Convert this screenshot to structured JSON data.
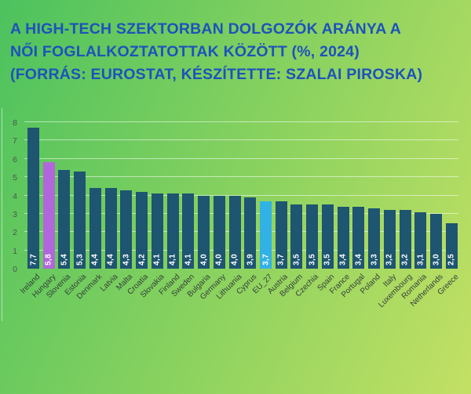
{
  "header": {
    "line1": "A HIGH-TECH SZEKTORBAN DOLGOZÓK ARÁNYA A",
    "line2": "NŐI FOGLALKOZTATOTTAK KÖZÖTT (%, 2024)",
    "line3": "(FORRÁS: EUROSTAT, KÉSZÍTETTE: SZALAI PIROSKA)"
  },
  "chart_data": {
    "type": "bar",
    "title": "A high-tech szektorban dolgozók aránya a női foglalkoztatottak között (%, 2024)",
    "source_note": "(Forrás: Eurostat, készítette: Szalai Piroska)",
    "categories": [
      "Ireland",
      "Hungary",
      "Slovenia",
      "Estonia",
      "Denmark",
      "Latvia",
      "Malta",
      "Croatia",
      "Slovakia",
      "Finland",
      "Sweden",
      "Bulgaria",
      "Germany",
      "Lithuania",
      "Cyprus",
      "EU_27",
      "Austria",
      "Belgium",
      "Czechia",
      "Spain",
      "France",
      "Portugal",
      "Poland",
      "Italy",
      "Luxembourg",
      "Romania",
      "Netherlands",
      "Greece"
    ],
    "values": [
      7.7,
      5.8,
      5.4,
      5.3,
      4.4,
      4.4,
      4.3,
      4.2,
      4.1,
      4.1,
      4.1,
      4.0,
      4.0,
      4.0,
      3.9,
      3.7,
      3.7,
      3.5,
      3.5,
      3.5,
      3.4,
      3.4,
      3.3,
      3.2,
      3.2,
      3.1,
      3.0,
      2.5
    ],
    "value_labels": [
      "7,7",
      "5,8",
      "5,4",
      "5,3",
      "4,4",
      "4,4",
      "4,3",
      "4,2",
      "4,1",
      "4,1",
      "4,1",
      "4,0",
      "4,0",
      "4,0",
      "3,9",
      "3,7",
      "3,7",
      "3,5",
      "3,5",
      "3,5",
      "3,4",
      "3,4",
      "3,3",
      "3,2",
      "3,2",
      "3,1",
      "3,0",
      "2,5"
    ],
    "yticks": [
      0,
      1,
      2,
      3,
      4,
      5,
      6,
      7,
      8
    ],
    "ylim": [
      0,
      8
    ],
    "grid": "horizontal",
    "legend": "none",
    "highlighted": {
      "Hungary": "#b266dc",
      "EU_27": "#32b1e6"
    }
  },
  "colors": {
    "background_left": "#4cc25e",
    "background_mid": "#8ad25f",
    "background_right": "#c3e064",
    "title_text": "#1d52bd",
    "bar_default": "#1e5570",
    "bar_hungary": "#b266dc",
    "bar_eu27": "#32b1e6",
    "bar_value_text": "#ffffff",
    "gridline": "rgba(255,255,255,0.55)",
    "ytick_text": "#4a574f",
    "category_text": "#333e39"
  }
}
